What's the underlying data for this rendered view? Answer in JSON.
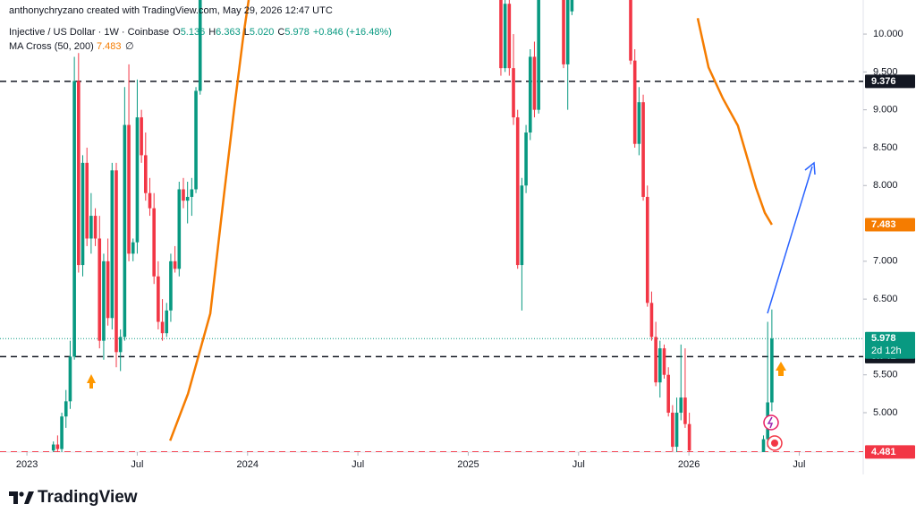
{
  "header": {
    "credit": "anthonychryzano created with TradingView.com, May 29, 2026 12:47 UTC"
  },
  "legend": {
    "symbol": "Injective / US Dollar · 1W · Coinbase",
    "ohlc": [
      {
        "key": "O",
        "text": "5.136"
      },
      {
        "key": "H",
        "text": "6.363"
      },
      {
        "key": "L",
        "text": "5.020"
      },
      {
        "key": "C",
        "text": "5.978"
      }
    ],
    "change": "+0.846 (+16.48%)",
    "indicator": "MA Cross (50, 200)",
    "indicator_value": "7.483",
    "indicator_empty": "∅"
  },
  "logo": "TradingView",
  "chart_data": {
    "type": "candlestick",
    "xlim": [
      2022.878,
      2026.79
    ],
    "ylim": [
      4.48,
      10.45
    ],
    "xticks": [
      2023,
      {
        "value": 2023.5,
        "label": "Jul"
      },
      2024,
      {
        "value": 2024.5,
        "label": "Jul"
      },
      2025,
      {
        "value": 2025.5,
        "label": "Jul"
      },
      2026,
      {
        "value": 2026.5,
        "label": "Jul"
      }
    ],
    "yticks": [
      {
        "value": 10,
        "label": "10.000"
      },
      {
        "value": 9.5,
        "label": "9.500"
      },
      {
        "value": 9,
        "label": "9.000"
      },
      {
        "value": 8.5,
        "label": "8.500"
      },
      {
        "value": 8,
        "label": "8.000"
      },
      {
        "value": 7,
        "label": "7.000"
      },
      {
        "value": 6.5,
        "label": "6.500"
      },
      {
        "value": 5.5,
        "label": "5.500"
      },
      {
        "value": 5,
        "label": "5.000"
      }
    ],
    "up_color": "#089981",
    "down_color": "#f23645",
    "x": [
      2023.12,
      2023.139,
      2023.158,
      2023.177,
      2023.196,
      2023.215,
      2023.234,
      2023.253,
      2023.272,
      2023.291,
      2023.31,
      2023.329,
      2023.348,
      2023.367,
      2023.386,
      2023.405,
      2023.424,
      2023.443,
      2023.462,
      2023.481,
      2023.5,
      2023.519,
      2023.538,
      2023.557,
      2023.576,
      2023.595,
      2023.614,
      2023.633,
      2023.652,
      2023.671,
      2023.69,
      2023.709,
      2023.728,
      2023.747,
      2023.766,
      2023.785,
      2025.148,
      2025.167,
      2025.186,
      2025.205,
      2025.224,
      2025.243,
      2025.262,
      2025.281,
      2025.3,
      2025.319,
      2025.432,
      2025.451,
      2025.47,
      2025.736,
      2025.755,
      2025.774,
      2025.793,
      2025.812,
      2025.831,
      2025.85,
      2025.869,
      2025.888,
      2025.907,
      2025.926,
      2025.945,
      2025.964,
      2025.983,
      2026.002,
      2026.338,
      2026.357,
      2026.376
    ],
    "open": [
      4.5,
      4.58,
      4.52,
      4.95,
      5.15,
      5.74,
      9.38,
      6.95,
      8.3,
      7.3,
      7.6,
      7.3,
      5.95,
      7.0,
      6.25,
      8.2,
      5.8,
      6.0,
      8.8,
      7.1,
      7.25,
      8.9,
      8.4,
      7.9,
      7.7,
      6.8,
      6.2,
      6.05,
      6.35,
      7.0,
      6.9,
      7.95,
      7.8,
      7.85,
      7.95,
      9.25,
      10.6,
      9.55,
      10.4,
      9.55,
      8.9,
      6.95,
      8.0,
      8.7,
      9.7,
      9.0,
      10.6,
      9.6,
      10.3,
      10.6,
      9.65,
      8.55,
      9.1,
      7.85,
      6.45,
      6.0,
      5.4,
      5.85,
      5.5,
      5.0,
      4.55,
      5.0,
      5.2,
      4.85,
      4.48,
      4.65,
      5.136
    ],
    "high": [
      4.62,
      4.7,
      5.0,
      5.3,
      5.95,
      9.7,
      9.75,
      8.4,
      8.5,
      7.9,
      7.7,
      7.6,
      7.1,
      7.3,
      8.3,
      8.3,
      6.1,
      9.3,
      9.6,
      7.3,
      9.4,
      9.0,
      8.7,
      8.1,
      7.9,
      7.0,
      6.5,
      6.45,
      7.1,
      7.2,
      8.05,
      8.1,
      8.05,
      8.1,
      9.3,
      10.6,
      10.6,
      10.6,
      10.5,
      10.0,
      9.0,
      8.1,
      8.8,
      9.8,
      9.9,
      10.6,
      10.6,
      10.6,
      10.6,
      10.6,
      9.8,
      9.3,
      9.2,
      8.0,
      6.6,
      6.2,
      5.95,
      5.9,
      5.6,
      5.1,
      5.2,
      5.9,
      5.85,
      5.0,
      4.7,
      6.2,
      6.363
    ],
    "low": [
      4.48,
      4.48,
      4.48,
      4.8,
      5.05,
      5.7,
      6.85,
      6.8,
      7.2,
      7.1,
      7.2,
      5.85,
      5.7,
      6.15,
      6.1,
      5.6,
      5.55,
      5.95,
      7.0,
      7.0,
      7.1,
      8.3,
      7.8,
      7.6,
      6.7,
      6.1,
      5.95,
      6.0,
      6.2,
      6.85,
      6.8,
      7.7,
      7.5,
      7.6,
      7.9,
      9.2,
      9.45,
      9.5,
      9.45,
      8.8,
      6.9,
      6.35,
      7.9,
      8.6,
      8.9,
      8.95,
      9.55,
      9.0,
      10.25,
      9.6,
      8.5,
      8.4,
      7.8,
      6.4,
      5.95,
      5.35,
      5.2,
      5.45,
      4.95,
      4.48,
      4.48,
      4.9,
      4.8,
      4.48,
      4.48,
      4.55,
      5.02
    ],
    "close": [
      4.58,
      4.52,
      4.95,
      5.15,
      5.74,
      9.38,
      6.95,
      8.3,
      7.3,
      7.6,
      7.3,
      5.95,
      7.0,
      6.25,
      8.2,
      5.8,
      6.0,
      8.8,
      7.1,
      7.25,
      8.9,
      8.4,
      7.9,
      7.7,
      6.8,
      6.2,
      6.05,
      6.35,
      7.0,
      6.9,
      7.95,
      7.8,
      7.85,
      7.95,
      9.25,
      10.6,
      9.55,
      10.4,
      9.55,
      8.9,
      6.95,
      8.0,
      8.7,
      9.7,
      9.0,
      10.6,
      9.6,
      10.55,
      10.45,
      9.65,
      8.55,
      9.1,
      7.85,
      6.45,
      6.0,
      5.4,
      5.85,
      5.5,
      5.0,
      4.55,
      5.0,
      5.2,
      4.85,
      4.5,
      4.65,
      5.136,
      5.978
    ],
    "ma": {
      "name": "MA Cross (50, 200)",
      "color": "#f57c00",
      "x": [
        2023.649,
        2023.73,
        2023.831,
        2023.892,
        2023.94,
        2023.981,
        2024.005,
        null,
        2026.04,
        2026.089,
        2026.154,
        2026.222,
        2026.304,
        2026.344,
        2026.376
      ],
      "values": [
        4.63,
        5.25,
        6.31,
        7.85,
        9.03,
        9.98,
        10.45,
        null,
        10.21,
        9.56,
        9.15,
        8.79,
        7.97,
        7.64,
        7.483
      ]
    },
    "price_lines": [
      {
        "value": 9.376,
        "style": "dashed",
        "color": "#131722",
        "label_color": "#131722"
      },
      {
        "value": 5.741,
        "style": "dashed",
        "color": "#131722",
        "label_color": "#131722"
      },
      {
        "value": 4.481,
        "style": "dashed",
        "color": "#f23645",
        "label_color": "#f23645"
      },
      {
        "value": 5.978,
        "style": "dotted",
        "color": "#089981",
        "label_color": "#089981",
        "sub": "2d 12h"
      },
      {
        "value": 7.483,
        "style": "none",
        "color": "#f57c00",
        "label_color": "#f57c00"
      }
    ]
  }
}
